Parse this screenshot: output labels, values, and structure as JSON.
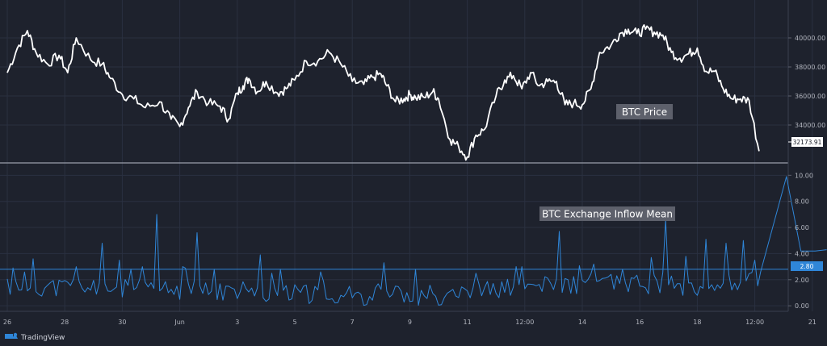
{
  "colors": {
    "background": "#1e222d",
    "grid": "#2a3040",
    "price_line": "#ffffff",
    "inflow_line": "#2f86d8",
    "mean_line": "#2f86d8",
    "axis_text": "#b2b5be",
    "annotation_bg": "#5d606b"
  },
  "watermark": {
    "icon": "tradingview-logo-icon",
    "text": "TradingView"
  },
  "chart_data": {
    "type": "line",
    "x_tick_labels": [
      "26",
      "28",
      "30",
      "Jun",
      "3",
      "5",
      "7",
      "9",
      "11",
      "12:00",
      "14",
      "16",
      "18",
      "12:00",
      "21"
    ],
    "panels": [
      {
        "id": "price",
        "annotation": "BTC Price",
        "y_ticks": [
          "34000.00",
          "36000.00",
          "38000.00",
          "40000.00"
        ],
        "ylim": [
          31500,
          41500
        ],
        "last_value_label": "32173.91",
        "last_value": 32173.91,
        "series": [
          {
            "name": "BTC Price",
            "x": [
              0,
              0.35,
              0.7,
              1.0,
              1.4,
              1.8,
              2.1,
              2.4,
              2.9,
              3.3,
              3.6,
              4.0,
              4.4,
              4.8,
              5.3,
              5.7,
              6.0,
              6.3,
              6.6,
              7.0,
              7.4,
              7.7,
              8.0,
              8.2,
              8.4,
              8.7,
              9.0,
              9.4,
              9.7,
              10.0,
              10.4,
              10.8,
              11.2,
              11.6,
              12.0,
              12.4,
              12.7,
              13.0,
              13.2,
              13.5,
              13.8,
              14.0,
              14.2,
              14.5,
              14.8,
              15.0,
              15.4,
              15.7,
              16.0,
              16.3,
              16.6,
              17.0,
              17.3,
              17.6,
              17.9,
              18.2,
              18.5,
              18.8,
              19.1,
              19.4,
              19.7,
              20.0,
              20.3,
              20.6,
              21.0,
              21.3,
              21.6,
              21.9,
              22.2,
              22.5,
              22.8,
              23.1,
              23.4,
              23.7,
              24.0,
              24.3,
              24.6,
              24.9,
              25.2,
              25.5,
              25.8,
              26.15
            ],
            "values": [
              37600,
              39300,
              40500,
              39000,
              38200,
              38800,
              37600,
              40000,
              38500,
              38200,
              37200,
              36100,
              35800,
              35200,
              35600,
              34400,
              33900,
              35200,
              36300,
              35500,
              35300,
              34400,
              36200,
              36700,
              37200,
              36300,
              37000,
              36200,
              36500,
              37100,
              38400,
              38400,
              39000,
              38200,
              37000,
              36800,
              37300,
              37500,
              36700,
              35600,
              35800,
              36100,
              35900,
              35900,
              36300,
              35800,
              33000,
              32500,
              31800,
              33300,
              33700,
              36000,
              37100,
              37400,
              36500,
              37600,
              36700,
              37000,
              37000,
              35400,
              35500,
              35400,
              36500,
              39000,
              39500,
              40300,
              40600,
              40300,
              40600,
              40400,
              40200,
              39000,
              38600,
              38900,
              39300,
              37700,
              37700,
              36500,
              35800,
              35800,
              35700,
              32200
            ]
          }
        ]
      },
      {
        "id": "inflow",
        "annotation": "BTC Exchange Inflow Mean",
        "y_ticks": [
          "0.00",
          "2.00",
          "4.00",
          "6.00",
          "8.00",
          "10.00"
        ],
        "ylim": [
          -0.3,
          10.7
        ],
        "last_value_label": "2.80",
        "last_value": 2.8,
        "series": [
          {
            "name": "BTC Exchange Inflow Mean",
            "base": [
              [
                0,
                1.4
              ],
              [
                3,
                1.3
              ],
              [
                6,
                1.1
              ],
              [
                9,
                0.9
              ],
              [
                12,
                0.7
              ],
              [
                15,
                0.7
              ],
              [
                18,
                1.4
              ],
              [
                21,
                1.7
              ],
              [
                24,
                1.4
              ],
              [
                26.2,
                1.8
              ]
            ],
            "spikes": [
              [
                0.2,
                2.9
              ],
              [
                0.9,
                3.6
              ],
              [
                2.4,
                3.0
              ],
              [
                3.3,
                4.8
              ],
              [
                3.9,
                3.5
              ],
              [
                4.3,
                2.8
              ],
              [
                4.7,
                3.0
              ],
              [
                5.2,
                7.0
              ],
              [
                6.1,
                3.0
              ],
              [
                6.6,
                5.6
              ],
              [
                7.2,
                2.8
              ],
              [
                8.8,
                3.9
              ],
              [
                9.2,
                2.5
              ],
              [
                9.5,
                2.8
              ],
              [
                10.9,
                2.6
              ],
              [
                13.1,
                3.3
              ],
              [
                14.2,
                2.8
              ],
              [
                16.3,
                2.5
              ],
              [
                17.9,
                3.0
              ],
              [
                19.2,
                5.7
              ],
              [
                20.4,
                3.2
              ],
              [
                21.4,
                2.8
              ],
              [
                22.4,
                3.7
              ],
              [
                22.9,
                6.6
              ],
              [
                23.6,
                3.8
              ],
              [
                24.3,
                5.1
              ],
              [
                25.0,
                4.8
              ],
              [
                25.6,
                5.0
              ],
              [
                26.0,
                3.5
              ],
              [
                27.1,
                9.9
              ],
              [
                27.6,
                4.2
              ],
              [
                28.1,
                4.2
              ],
              [
                28.5,
                4.3
              ]
            ]
          }
        ]
      }
    ]
  }
}
